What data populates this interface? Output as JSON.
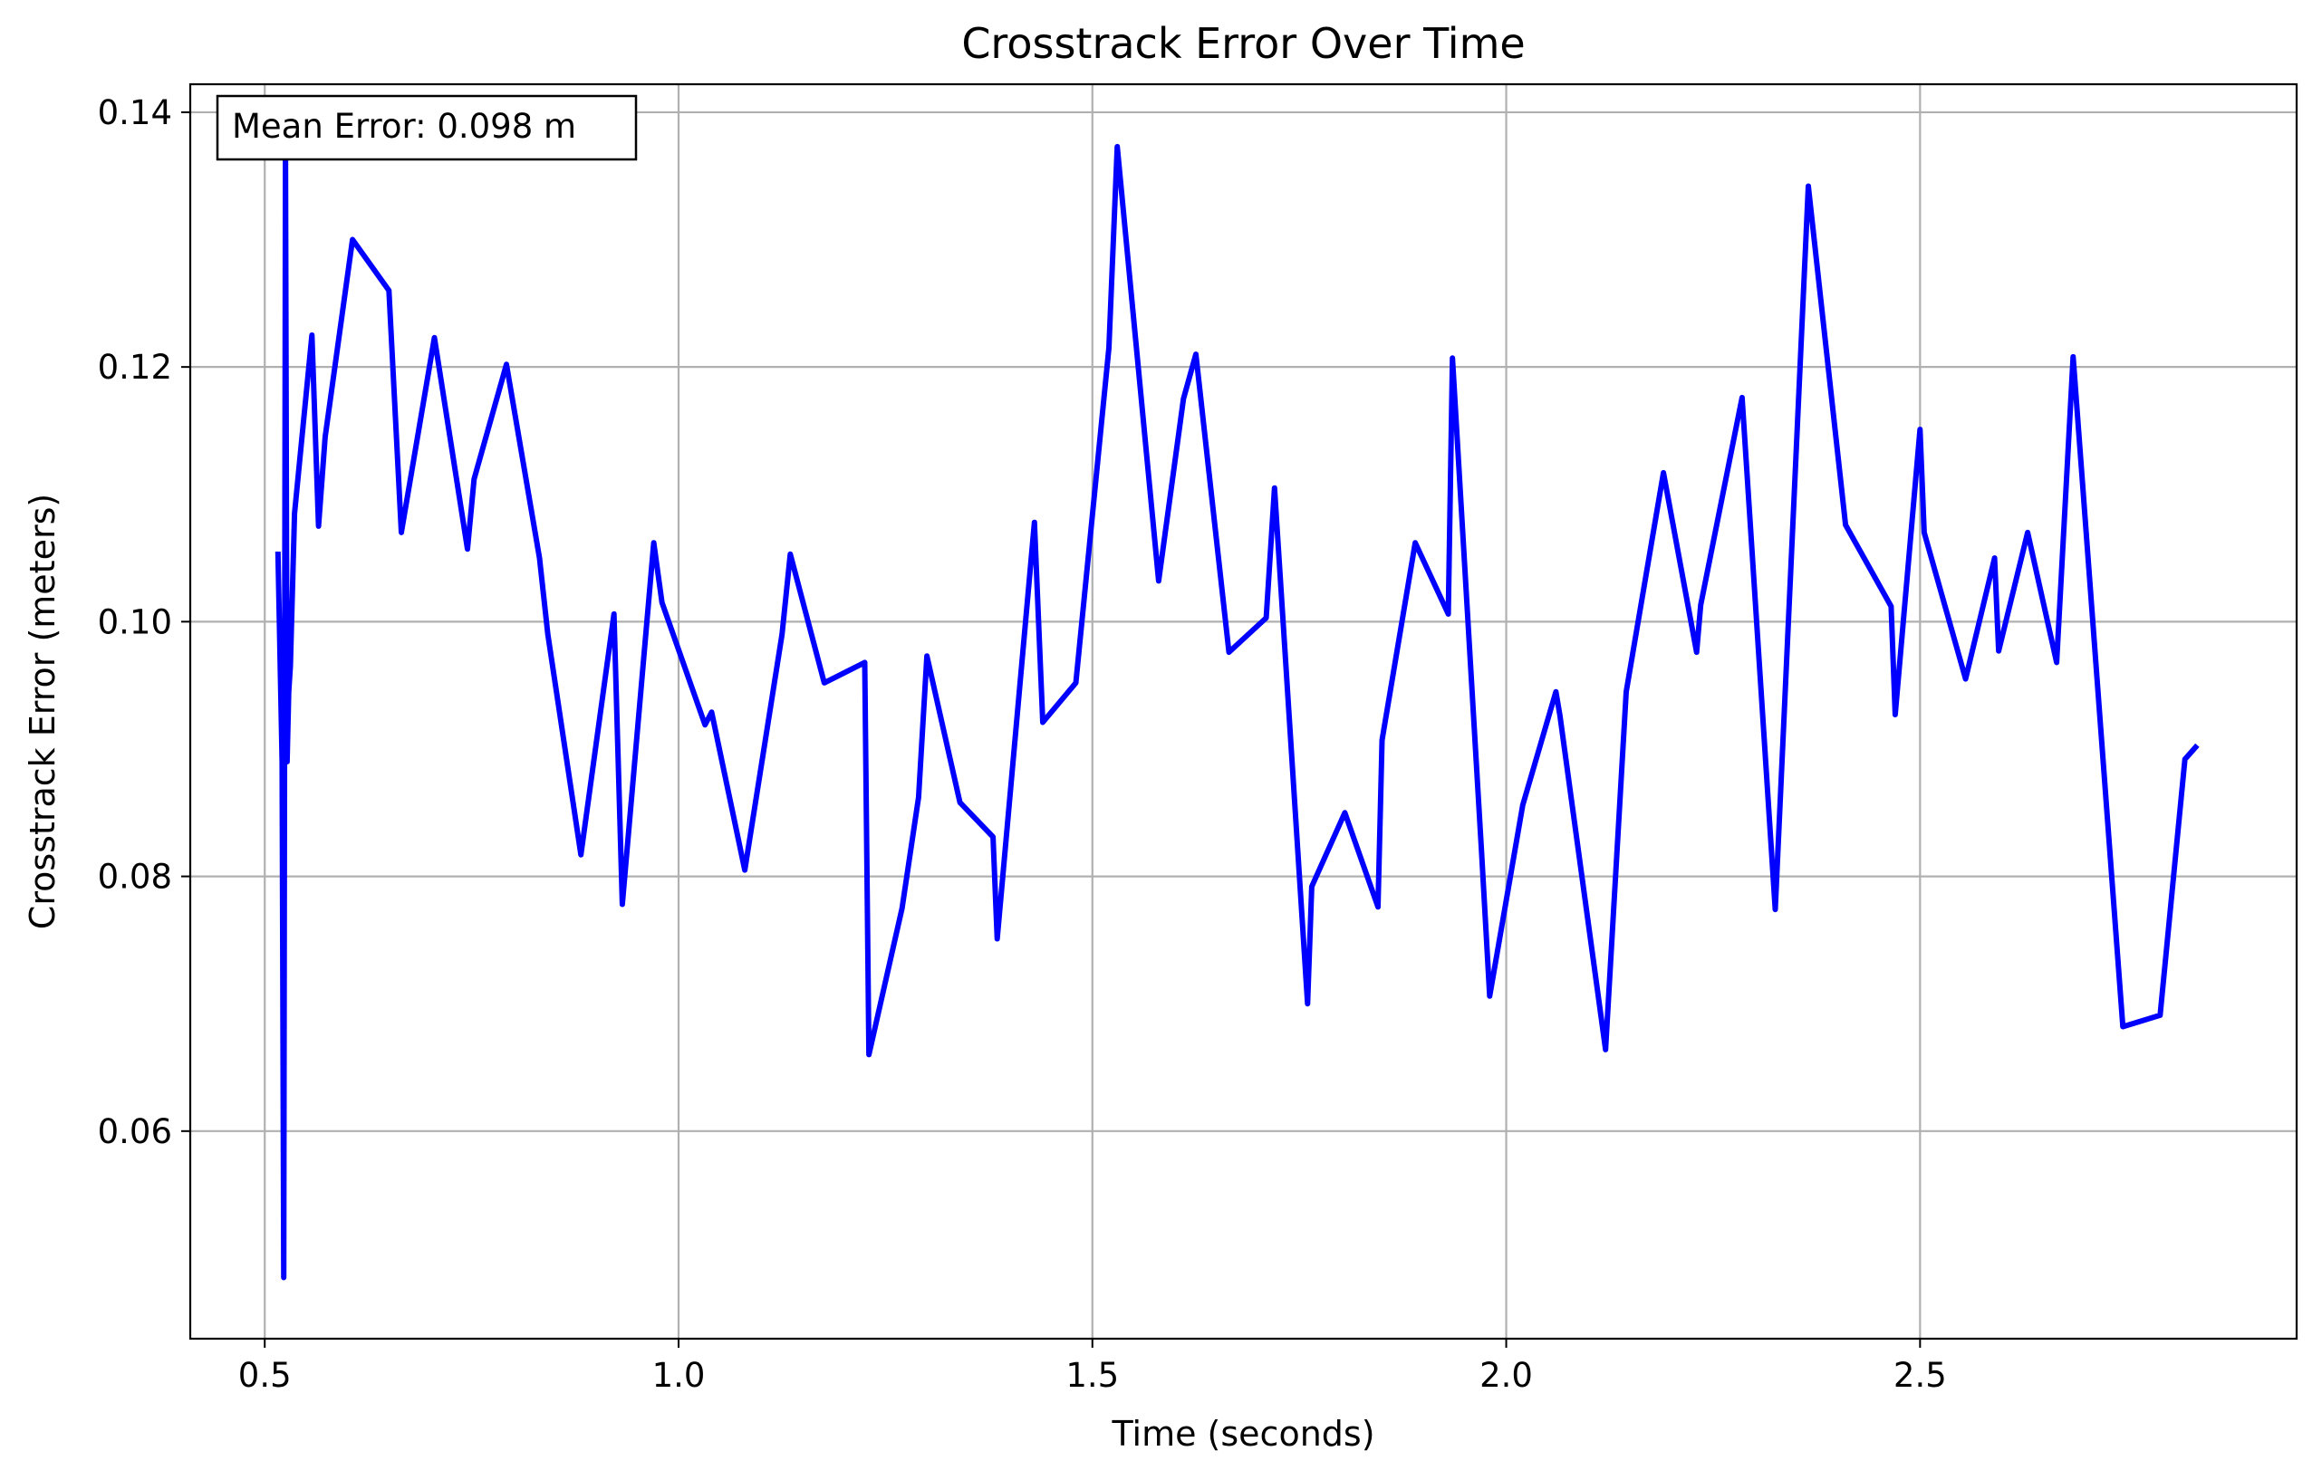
{
  "chart_data": {
    "type": "line",
    "title": "Crosstrack Error Over Time",
    "xlabel": "Time (seconds)",
    "ylabel": "Crosstrack Error (meters)",
    "xlim": [
      0.41,
      2.955
    ],
    "ylim": [
      0.0437,
      0.1422
    ],
    "xticks": [
      0.5,
      1.0,
      1.5,
      2.0,
      2.5
    ],
    "xtick_labels": [
      "0.5",
      "1.0",
      "1.5",
      "2.0",
      "2.5"
    ],
    "yticks": [
      0.06,
      0.08,
      0.1,
      0.12,
      0.14
    ],
    "ytick_labels": [
      "0.06",
      "0.08",
      "0.10",
      "0.12",
      "0.14"
    ],
    "grid": true,
    "annotation": "Mean Error: 0.098 m",
    "annotation_position": "top-left",
    "series": [
      {
        "color": "#0000ff",
        "x": [
          0.516,
          0.521,
          0.523,
          0.525,
          0.527,
          0.529,
          0.531,
          0.536,
          0.557,
          0.565,
          0.573,
          0.606,
          0.65,
          0.665,
          0.705,
          0.745,
          0.753,
          0.792,
          0.832,
          0.842,
          0.882,
          0.922,
          0.932,
          0.97,
          0.98,
          1.032,
          1.04,
          1.08,
          1.125,
          1.135,
          1.176,
          1.225,
          1.23,
          1.27,
          1.29,
          1.3,
          1.34,
          1.38,
          1.385,
          1.43,
          1.44,
          1.48,
          1.52,
          1.53,
          1.58,
          1.61,
          1.625,
          1.665,
          1.71,
          1.72,
          1.76,
          1.765,
          1.805,
          1.845,
          1.85,
          1.89,
          1.93,
          1.935,
          1.97,
          1.98,
          2.02,
          2.06,
          2.065,
          2.12,
          2.145,
          2.19,
          2.23,
          2.235,
          2.285,
          2.325,
          2.365,
          2.41,
          2.465,
          2.47,
          2.5,
          2.505,
          2.555,
          2.59,
          2.595,
          2.63,
          2.665,
          2.685,
          2.745,
          2.79,
          2.82,
          2.835
        ],
        "y": [
          0.1055,
          0.089,
          0.0485,
          0.1375,
          0.089,
          0.0945,
          0.0965,
          0.1085,
          0.1225,
          0.1075,
          0.1145,
          0.13,
          0.126,
          0.107,
          0.1223,
          0.1057,
          0.1112,
          0.1202,
          0.105,
          0.099,
          0.0817,
          0.1006,
          0.0778,
          0.1062,
          0.1015,
          0.0919,
          0.0929,
          0.0805,
          0.099,
          0.1053,
          0.0952,
          0.0968,
          0.066,
          0.0775,
          0.0862,
          0.0973,
          0.0858,
          0.0831,
          0.0751,
          0.1078,
          0.0921,
          0.0952,
          0.1215,
          0.1373,
          0.1032,
          0.1175,
          0.121,
          0.0976,
          0.1003,
          0.1105,
          0.07,
          0.0792,
          0.085,
          0.0776,
          0.0907,
          0.1062,
          0.1006,
          0.1207,
          0.0822,
          0.0706,
          0.0856,
          0.0945,
          0.0926,
          0.0664,
          0.0945,
          0.1117,
          0.0976,
          0.1013,
          0.1176,
          0.0774,
          0.1342,
          0.1076,
          0.1012,
          0.0927,
          0.1151,
          0.107,
          0.0955,
          0.105,
          0.0977,
          0.107,
          0.0968,
          0.1208,
          0.0682,
          0.0691,
          0.0892,
          0.0903
        ]
      }
    ]
  }
}
